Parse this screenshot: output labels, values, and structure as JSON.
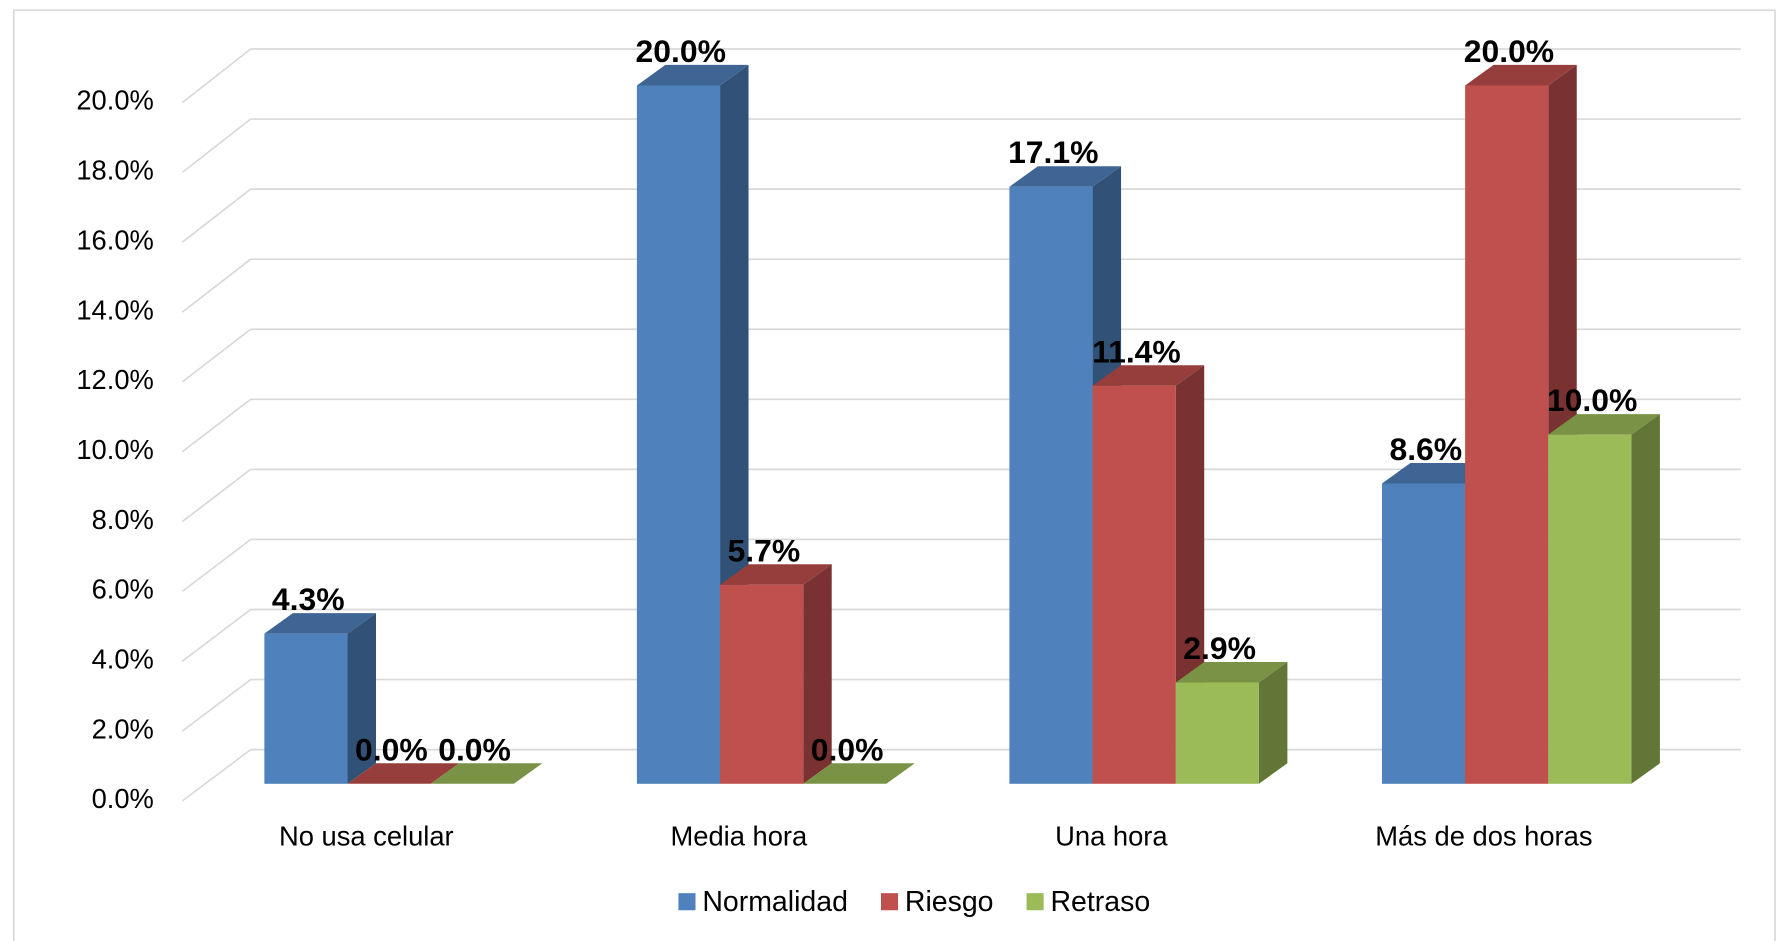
{
  "chart_data": {
    "type": "bar3d",
    "categories": [
      "No usa celular",
      "Media hora",
      "Una hora",
      "Más de dos horas"
    ],
    "series": [
      {
        "name": "Normalidad",
        "color": "#4f81bd",
        "values": [
          4.3,
          20.0,
          17.1,
          8.6
        ],
        "value_labels": [
          "4.3%",
          "20.0%",
          "17.1%",
          "8.6%"
        ]
      },
      {
        "name": "Riesgo",
        "color": "#c0504d",
        "values": [
          0.0,
          5.7,
          11.4,
          20.0
        ],
        "value_labels": [
          "0.0%",
          "5.7%",
          "11.4%",
          "20.0%"
        ]
      },
      {
        "name": "Retraso",
        "color": "#9bbb59",
        "values": [
          0.0,
          0.0,
          2.9,
          10.0
        ],
        "value_labels": [
          "0.0%",
          "0.0%",
          "2.9%",
          "10.0%"
        ]
      }
    ],
    "ylim": [
      0,
      20
    ],
    "yticks": [
      {
        "value": 0,
        "label": "0.0%"
      },
      {
        "value": 2,
        "label": "2.0%"
      },
      {
        "value": 4,
        "label": "4.0%"
      },
      {
        "value": 6,
        "label": "6.0%"
      },
      {
        "value": 8,
        "label": "8.0%"
      },
      {
        "value": 10,
        "label": "10.0%"
      },
      {
        "value": 12,
        "label": "12.0%"
      },
      {
        "value": 14,
        "label": "14.0%"
      },
      {
        "value": 16,
        "label": "16.0%"
      },
      {
        "value": 18,
        "label": "18.0%"
      },
      {
        "value": 20,
        "label": "20.0%"
      }
    ],
    "grid": true,
    "legend": "bottom"
  }
}
